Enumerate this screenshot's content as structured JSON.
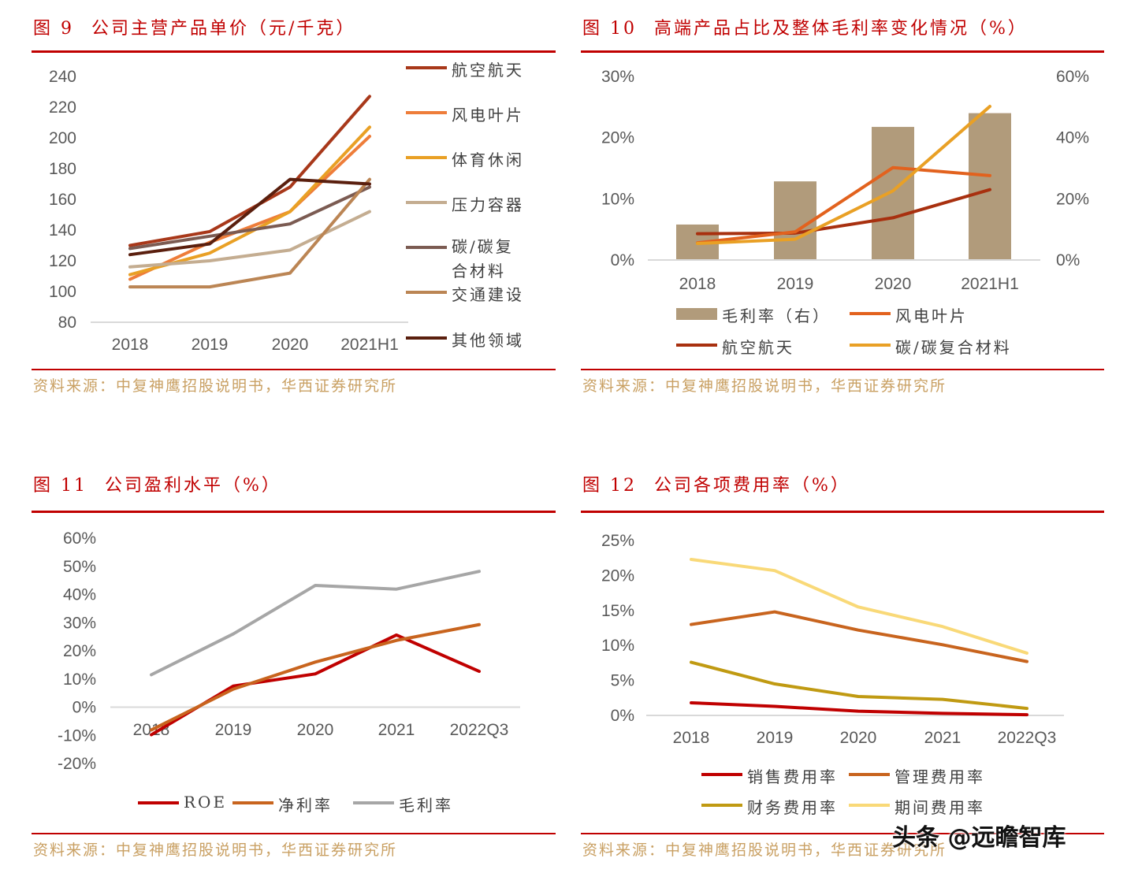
{
  "chart_data": [
    {
      "type": "line",
      "figure_label": "图 9",
      "title": "公司主营产品单价（元/千克）",
      "source": "资料来源：中复神鹰招股说明书，华西证券研究所",
      "categories": [
        "2018",
        "2019",
        "2020",
        "2021H1"
      ],
      "ylim": [
        80,
        240
      ],
      "y_ticks": [
        "80",
        "100",
        "120",
        "140",
        "160",
        "180",
        "200",
        "220",
        "240"
      ],
      "legend_position": "right",
      "series": [
        {
          "name": "航空航天",
          "color": "#a8381a",
          "values": [
            130,
            139,
            168,
            227
          ]
        },
        {
          "name": "风电叶片",
          "color": "#ee7d3a",
          "values": [
            108,
            132,
            152,
            201
          ]
        },
        {
          "name": "体育休闲",
          "color": "#e9a025",
          "values": [
            111,
            125,
            152,
            207
          ]
        },
        {
          "name": "压力容器",
          "color": "#c4ad91",
          "values": [
            116,
            120,
            127,
            152
          ]
        },
        {
          "name": "碳/碳复合材料",
          "color": "#7b5b52",
          "values": [
            128,
            136,
            144,
            168
          ]
        },
        {
          "name": "交通建设",
          "color": "#bb8554",
          "values": [
            103,
            103,
            112,
            173
          ]
        },
        {
          "name": "其他领域",
          "color": "#5a1f0e",
          "values": [
            124,
            131,
            173,
            170
          ]
        }
      ]
    },
    {
      "type": "bar+line",
      "figure_label": "图 10",
      "title": "高端产品占比及整体毛利率变化情况（%）",
      "source": "资料来源：中复神鹰招股说明书，华西证券研究所",
      "categories": [
        "2018",
        "2019",
        "2020",
        "2021H1"
      ],
      "ylim_left": [
        0,
        30
      ],
      "ylim_right": [
        0,
        60
      ],
      "y_ticks_left": [
        "0%",
        "10%",
        "20%",
        "30%"
      ],
      "y_ticks_right": [
        "0%",
        "20%",
        "40%",
        "60%"
      ],
      "legend_position": "bottom",
      "bars": {
        "name": "毛利率（右）",
        "color": "#b19b7b",
        "axis": "right",
        "values": [
          11.6,
          25.7,
          43.5,
          48.0
        ]
      },
      "series": [
        {
          "name": "航空航天",
          "color": "#a8300f",
          "axis": "left",
          "values": [
            4.3,
            4.4,
            6.9,
            11.5
          ]
        },
        {
          "name": "风电叶片",
          "color": "#e2621e",
          "axis": "left",
          "values": [
            2.8,
            4.6,
            15.1,
            13.8
          ]
        },
        {
          "name": "碳/碳复合材料",
          "color": "#e9a025",
          "axis": "left",
          "values": [
            2.7,
            3.4,
            11.3,
            25.1
          ]
        }
      ]
    },
    {
      "type": "line",
      "figure_label": "图 11",
      "title": "公司盈利水平（%）",
      "source": "资料来源：中复神鹰招股说明书，华西证券研究所",
      "categories": [
        "2018",
        "2019",
        "2020",
        "2021",
        "2022Q3"
      ],
      "ylim": [
        -20,
        60
      ],
      "y_ticks": [
        "-20%",
        "-10%",
        "0%",
        "10%",
        "20%",
        "30%",
        "40%",
        "50%",
        "60%"
      ],
      "legend_position": "bottom",
      "series": [
        {
          "name": "ROE",
          "color": "#c00000",
          "values": [
            -9.8,
            7.5,
            11.8,
            25.6,
            12.7
          ]
        },
        {
          "name": "净利率",
          "color": "#c8641e",
          "values": [
            -8.1,
            6.4,
            16.0,
            23.7,
            29.3
          ]
        },
        {
          "name": "毛利率",
          "color": "#a6a6a6",
          "values": [
            11.5,
            26.0,
            43.2,
            41.9,
            48.2
          ]
        }
      ]
    },
    {
      "type": "line",
      "figure_label": "图 12",
      "title": "公司各项费用率（%）",
      "source": "资料来源：中复神鹰招股说明书，华西证券研究所",
      "categories": [
        "2018",
        "2019",
        "2020",
        "2021",
        "2022Q3"
      ],
      "ylim": [
        0,
        25
      ],
      "y_ticks": [
        "0%",
        "5%",
        "10%",
        "15%",
        "20%",
        "25%"
      ],
      "legend_position": "bottom",
      "series": [
        {
          "name": "销售费用率",
          "color": "#c00000",
          "values": [
            1.8,
            1.3,
            0.6,
            0.3,
            0.1
          ]
        },
        {
          "name": "管理费用率",
          "color": "#c8641e",
          "values": [
            13.0,
            14.8,
            12.2,
            10.1,
            7.7
          ]
        },
        {
          "name": "财务费用率",
          "color": "#c09a12",
          "values": [
            7.6,
            4.5,
            2.7,
            2.3,
            1.0
          ]
        },
        {
          "name": "期间费用率",
          "color": "#f9d978",
          "values": [
            22.3,
            20.7,
            15.5,
            12.7,
            8.9
          ]
        }
      ]
    }
  ],
  "watermark": "头条 @远瞻智库"
}
